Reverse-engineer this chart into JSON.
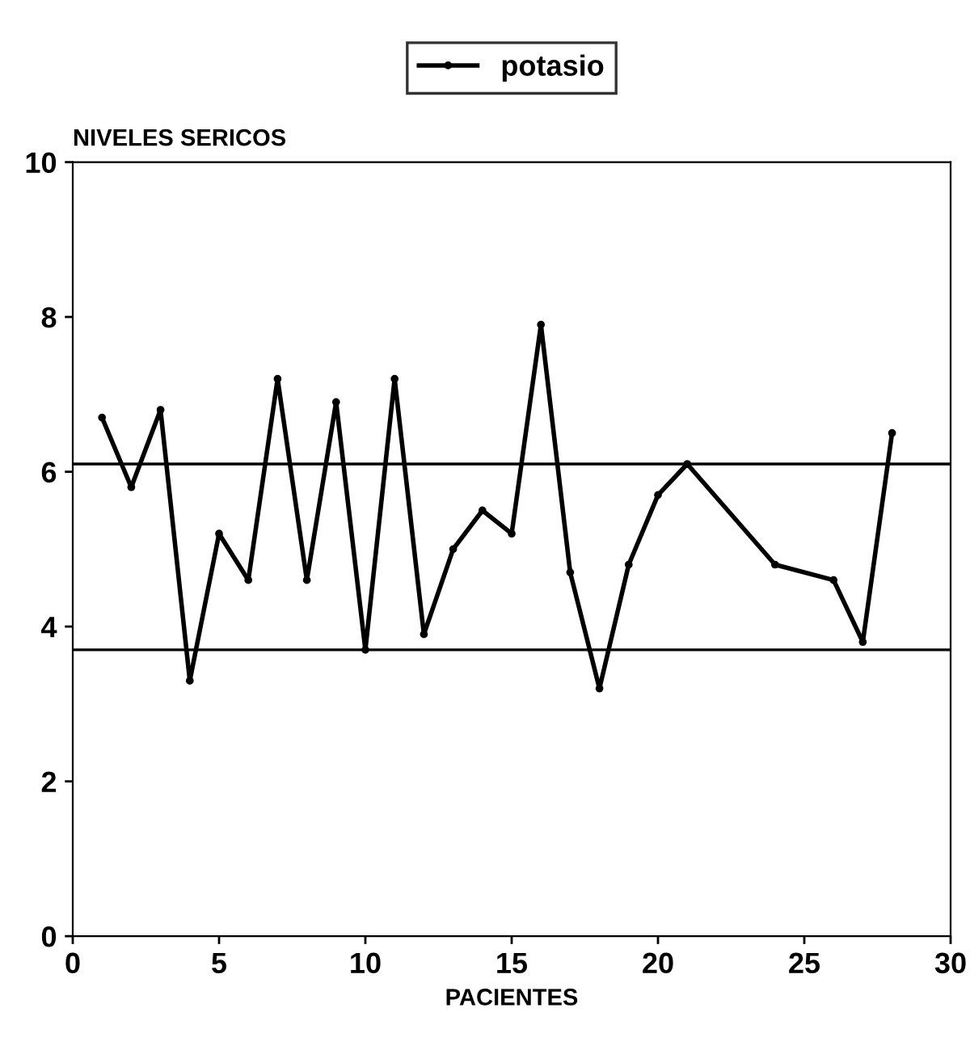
{
  "chart_data": {
    "type": "line",
    "ylabel": "NIVELES SERICOS",
    "xlabel": "PACIENTES",
    "x": [
      1,
      2,
      3,
      4,
      5,
      6,
      7,
      8,
      9,
      10,
      11,
      12,
      13,
      14,
      15,
      16,
      17,
      18,
      19,
      20,
      21,
      24,
      26,
      27,
      28
    ],
    "series": [
      {
        "name": "potasio",
        "color": "#000000",
        "values": [
          6.7,
          5.8,
          6.8,
          3.3,
          5.2,
          4.6,
          7.2,
          4.6,
          6.9,
          3.7,
          7.2,
          3.9,
          5.0,
          5.5,
          5.2,
          7.9,
          4.7,
          3.2,
          4.8,
          5.7,
          6.1,
          4.8,
          4.6,
          3.8,
          6.5
        ]
      }
    ],
    "xlim": [
      0,
      30
    ],
    "xticks": [
      0,
      5,
      10,
      15,
      20,
      25,
      30
    ],
    "ylim": [
      0,
      10
    ],
    "yticks": [
      0,
      2,
      4,
      6,
      8,
      10
    ],
    "ref_lines": [
      {
        "axis": "y",
        "value": 6.1,
        "color": "#000000"
      },
      {
        "axis": "y",
        "value": 3.7,
        "color": "#000000"
      }
    ],
    "grid": false,
    "legend": "top",
    "marker": "circle",
    "line_style": "solid"
  }
}
